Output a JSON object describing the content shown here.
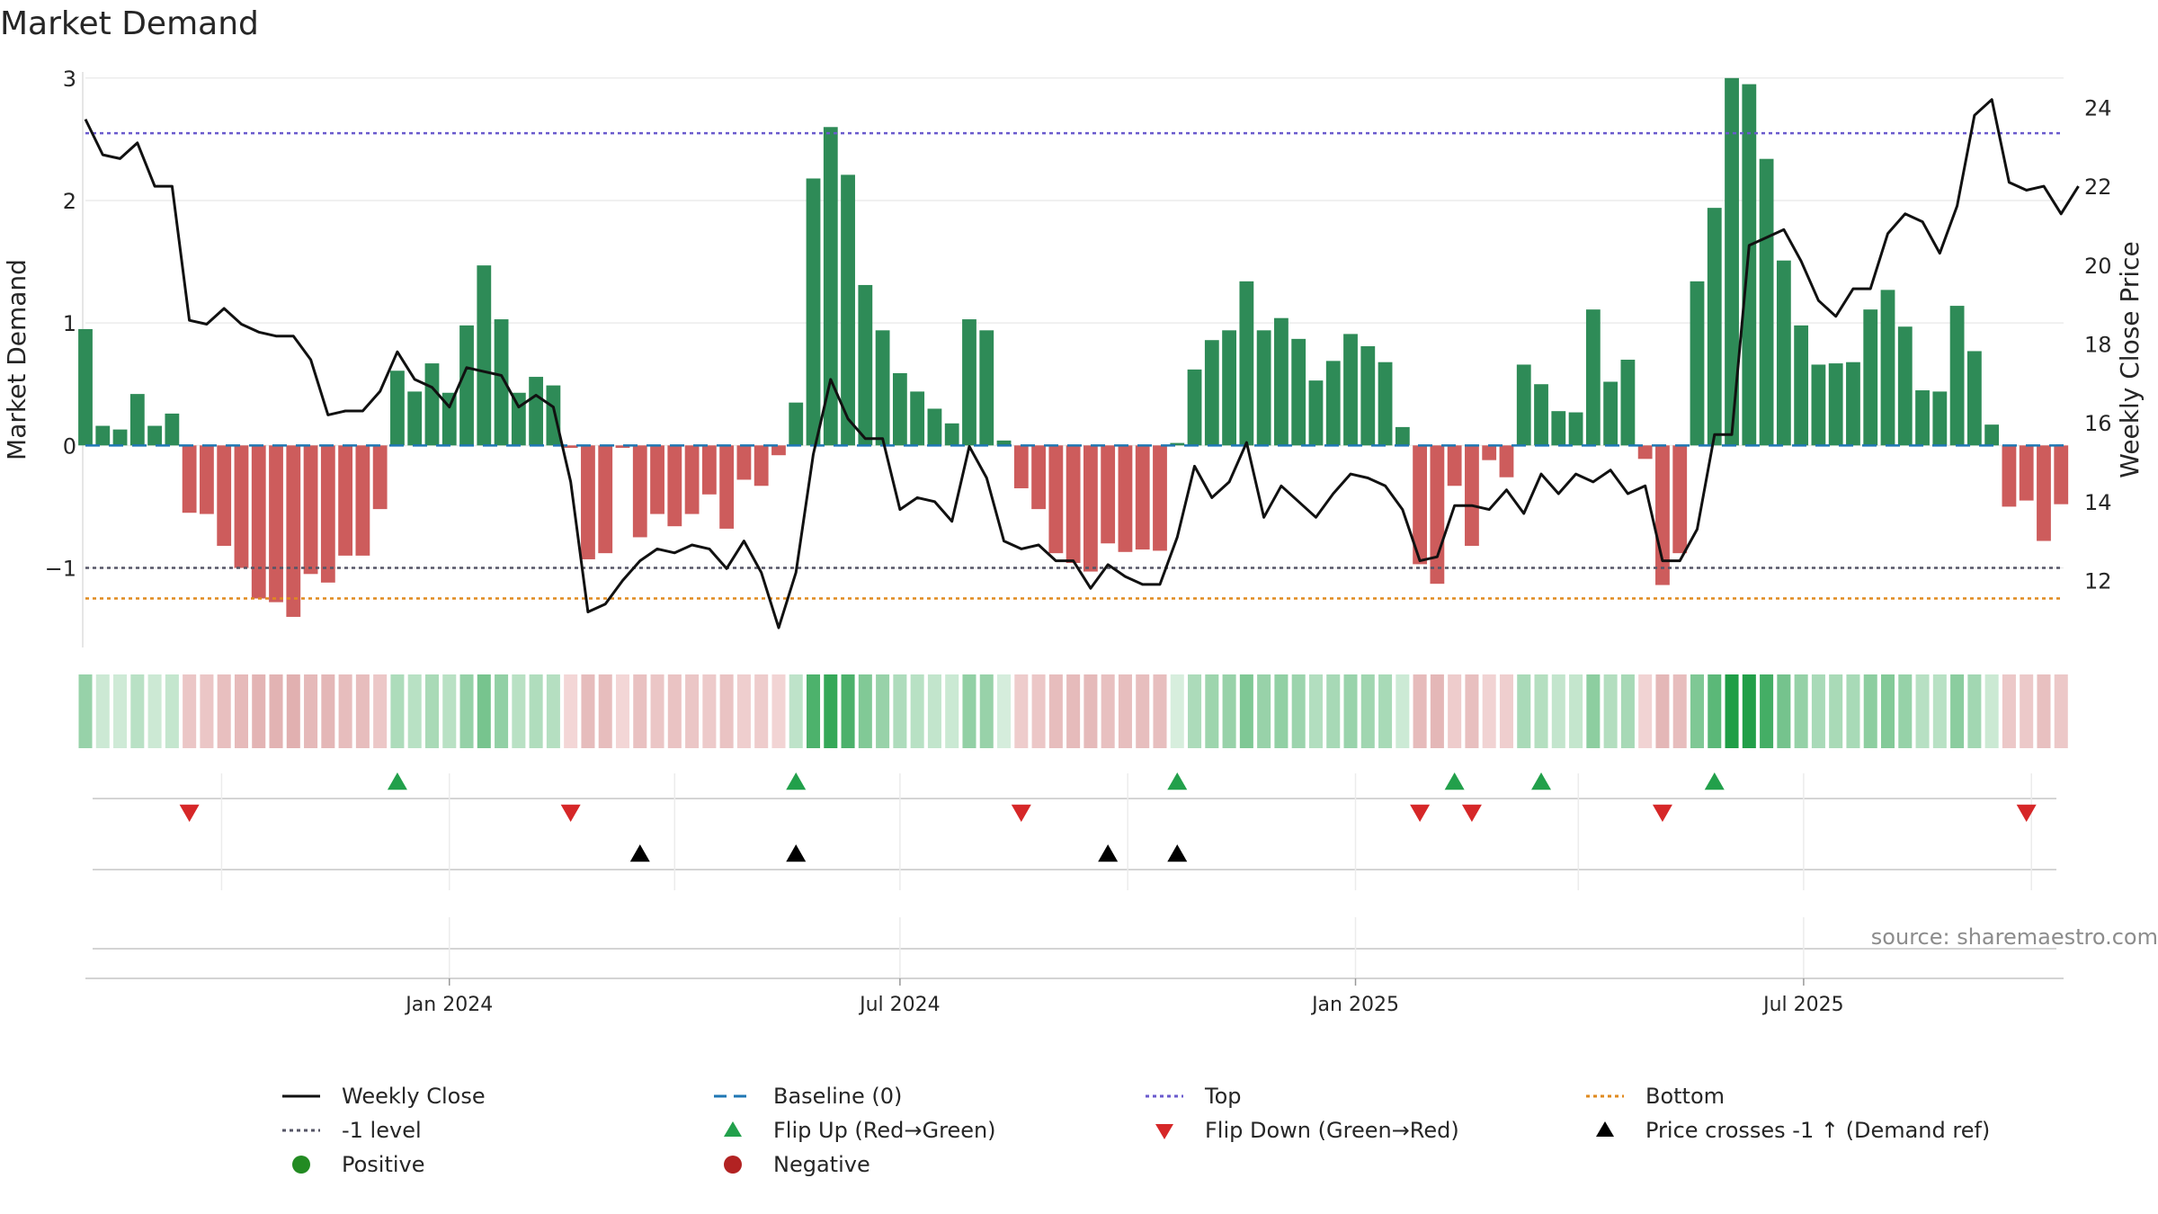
{
  "chart_data": {
    "type": "bar+line",
    "title": "Market Demand",
    "ylabel_left": "Market Demand",
    "ylabel_right": "Weekly Close Price",
    "ylim_left": [
      -1.65,
      3.05
    ],
    "yticks_left": [
      3,
      2,
      1,
      0,
      -1
    ],
    "ytick_labels_left": [
      "3",
      "2",
      "1",
      "0",
      "−1"
    ],
    "ylim_right": [
      10.3,
      24.9
    ],
    "yticks_right": [
      24,
      22,
      20,
      18,
      16,
      14,
      12
    ],
    "xlim": [
      "2023-08-07",
      "2025-10-14"
    ],
    "xticks": [
      {
        "date": "2024-01-01",
        "label": "Jan 2024"
      },
      {
        "date": "2024-07-01",
        "label": "Jul 2024"
      },
      {
        "date": "2025-01-01",
        "label": "Jan 2025"
      },
      {
        "date": "2025-07-01",
        "label": "Jul 2025"
      }
    ],
    "start_date": "2023-08-07",
    "week_days": 7,
    "levels": {
      "top": 2.55,
      "bottom": -1.25,
      "minus1": -1,
      "baseline": 0
    },
    "demand": [
      0.95,
      0.16,
      0.13,
      0.42,
      0.16,
      0.26,
      -0.55,
      -0.56,
      -0.82,
      -1.0,
      -1.25,
      -1.28,
      -1.4,
      -1.05,
      -1.12,
      -0.9,
      -0.9,
      -0.52,
      0.61,
      0.44,
      0.67,
      0.43,
      0.98,
      1.47,
      1.03,
      0.43,
      0.56,
      0.49,
      -0.02,
      -0.93,
      -0.88,
      -0.02,
      -0.75,
      -0.56,
      -0.66,
      -0.56,
      -0.4,
      -0.68,
      -0.28,
      -0.33,
      -0.08,
      0.35,
      2.18,
      2.6,
      2.21,
      1.31,
      0.94,
      0.59,
      0.44,
      0.3,
      0.18,
      1.03,
      0.94,
      0.04,
      -0.35,
      -0.52,
      -0.88,
      -0.96,
      -1.03,
      -0.8,
      -0.87,
      -0.85,
      -0.86,
      0.02,
      0.62,
      0.86,
      0.94,
      1.34,
      0.94,
      1.04,
      0.87,
      0.53,
      0.69,
      0.91,
      0.81,
      0.68,
      0.15,
      -0.97,
      -1.13,
      -0.33,
      -0.82,
      -0.12,
      -0.26,
      0.66,
      0.5,
      0.28,
      0.27,
      1.11,
      0.52,
      0.7,
      -0.11,
      -1.14,
      -0.88,
      1.34,
      1.94,
      3.0,
      2.95,
      2.34,
      1.51,
      0.98,
      0.66,
      0.67,
      0.68,
      1.11,
      1.27,
      0.97,
      0.45,
      0.44,
      1.14,
      0.77,
      0.17,
      -0.5,
      -0.45,
      -0.78,
      -0.48
    ],
    "weekly_close": [
      23.7,
      22.8,
      22.7,
      23.1,
      22.0,
      22.0,
      18.6,
      18.5,
      18.9,
      18.5,
      18.3,
      18.2,
      18.2,
      17.6,
      16.2,
      16.3,
      16.3,
      16.8,
      17.8,
      17.1,
      16.9,
      16.4,
      17.4,
      17.3,
      17.2,
      16.4,
      16.7,
      16.4,
      14.5,
      11.2,
      11.4,
      12.0,
      12.5,
      12.8,
      12.7,
      12.9,
      12.8,
      12.3,
      13.0,
      12.2,
      10.8,
      12.2,
      15.2,
      17.1,
      16.1,
      15.6,
      15.6,
      13.8,
      14.1,
      14.0,
      13.5,
      15.4,
      14.6,
      13.0,
      12.8,
      12.9,
      12.5,
      12.5,
      11.8,
      12.4,
      12.1,
      11.9,
      11.9,
      13.1,
      14.9,
      14.1,
      14.5,
      15.5,
      13.6,
      14.4,
      14.0,
      13.6,
      14.2,
      14.7,
      14.6,
      14.4,
      13.8,
      12.5,
      12.6,
      13.9,
      13.9,
      13.8,
      14.3,
      13.7,
      14.7,
      14.2,
      14.7,
      14.5,
      14.8,
      14.2,
      14.4,
      12.5,
      12.5,
      13.3,
      15.7,
      15.7,
      20.5,
      20.7,
      20.9,
      20.1,
      19.1,
      18.7,
      19.4,
      19.4,
      20.8,
      21.3,
      21.1,
      20.3,
      21.5,
      23.8,
      24.2,
      22.1,
      21.9,
      22.0,
      21.3,
      22.0
    ],
    "flip_up_weeks": [
      18,
      41,
      63,
      79,
      84,
      94
    ],
    "flip_down_weeks": [
      6,
      28,
      54,
      77,
      80,
      91,
      112
    ],
    "price_cross_weeks": [
      32,
      41,
      59,
      63
    ],
    "source": "source: sharemaestro.com",
    "legend": [
      {
        "key": "weekly_close",
        "label": "Weekly Close"
      },
      {
        "key": "baseline",
        "label": "Baseline (0)"
      },
      {
        "key": "top",
        "label": "Top"
      },
      {
        "key": "bottom",
        "label": "Bottom"
      },
      {
        "key": "minus1",
        "label": "-1 level"
      },
      {
        "key": "flip_up",
        "label": "Flip Up (Red→Green)"
      },
      {
        "key": "flip_down",
        "label": "Flip Down (Green→Red)"
      },
      {
        "key": "price_cross",
        "label": "Price crosses -1 ↑ (Demand ref)"
      },
      {
        "key": "positive",
        "label": "Positive"
      },
      {
        "key": "negative",
        "label": "Negative"
      }
    ],
    "colors": {
      "positive_bar": "#2e8b57",
      "negative_bar": "#cd5c5c",
      "line": "#111111",
      "baseline": "#1f77b4",
      "top": "#6a5acd",
      "bottom": "#e08a1e",
      "minus1": "#555566",
      "flip_up": "#22a04b",
      "flip_down": "#d62728",
      "price_cross": "#000000",
      "positive_dot": "#228b22",
      "negative_dot": "#b22222"
    }
  }
}
